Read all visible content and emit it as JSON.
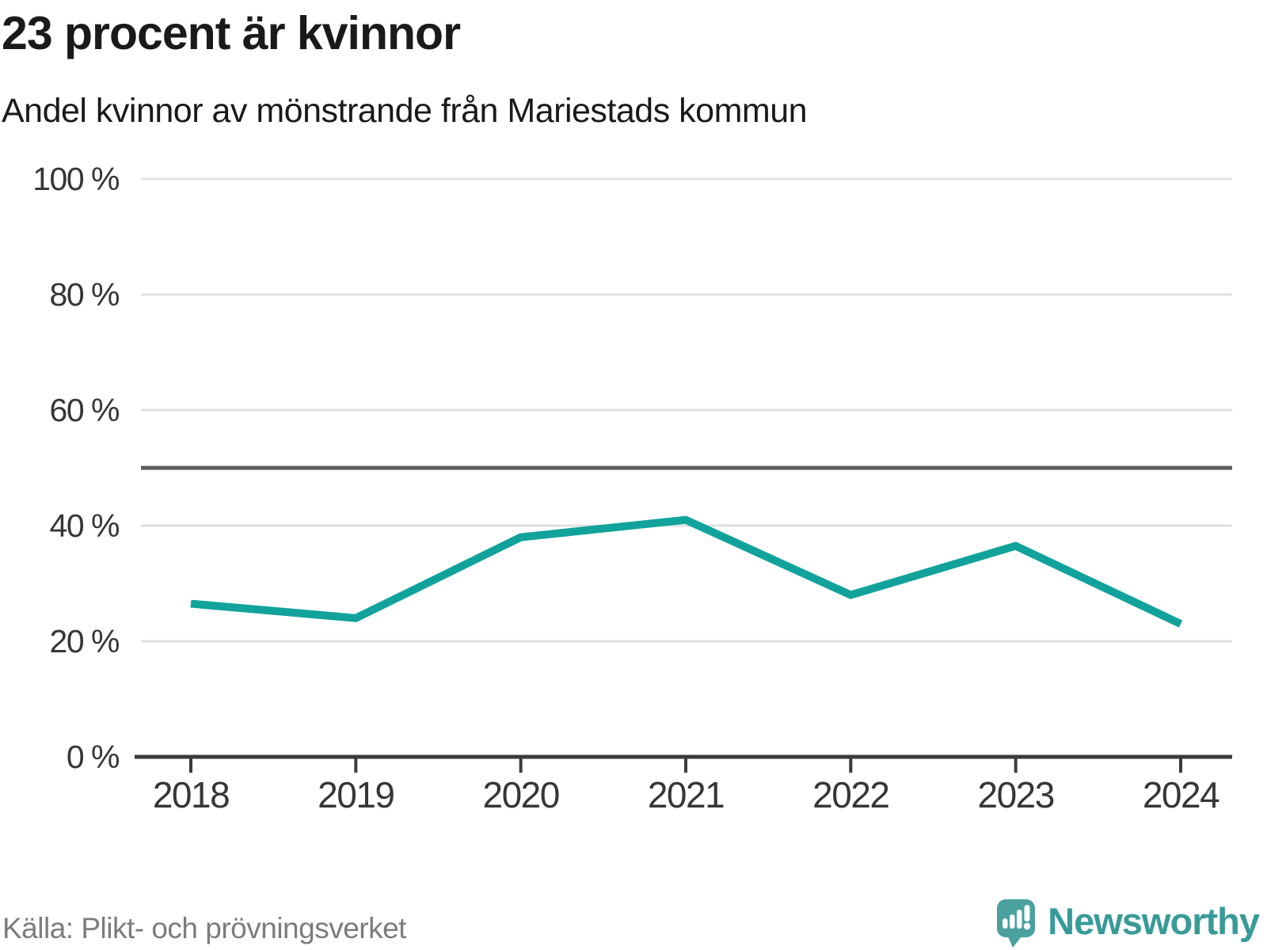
{
  "header": {
    "title": "23 procent är kvinnor",
    "subtitle": "Andel kvinnor av mönstrande från Mariestads kommun"
  },
  "chart_data": {
    "type": "line",
    "title": "23 procent är kvinnor",
    "subtitle": "Andel kvinnor av mönstrande från Mariestads kommun",
    "categories": [
      2018,
      2019,
      2020,
      2021,
      2022,
      2023,
      2024
    ],
    "series": [
      {
        "name": "Andel kvinnor av mönstrande",
        "values": [
          26.5,
          24,
          38,
          41,
          28,
          36.5,
          23
        ]
      }
    ],
    "unit": "%",
    "ylim": [
      0,
      100
    ],
    "yticks": [
      0,
      20,
      40,
      60,
      80,
      100
    ],
    "ytick_suffix": " %",
    "reference_line": 50,
    "grid": "horizontal",
    "legend": "none",
    "colors": {
      "line": "#11a39b",
      "grid": "#e0e0e0",
      "reference": "#5c5c60",
      "axis": "#3b3b3b",
      "tick_label": "#363636"
    }
  },
  "footer": {
    "source": "Källa: Plikt- och prövningsverket",
    "brand": "Newsworthy",
    "brand_color": "#389b99",
    "logo_icon": "speech-bubble-bar-chart-exclamation",
    "logo_icon_color": "#4aa1a0"
  }
}
